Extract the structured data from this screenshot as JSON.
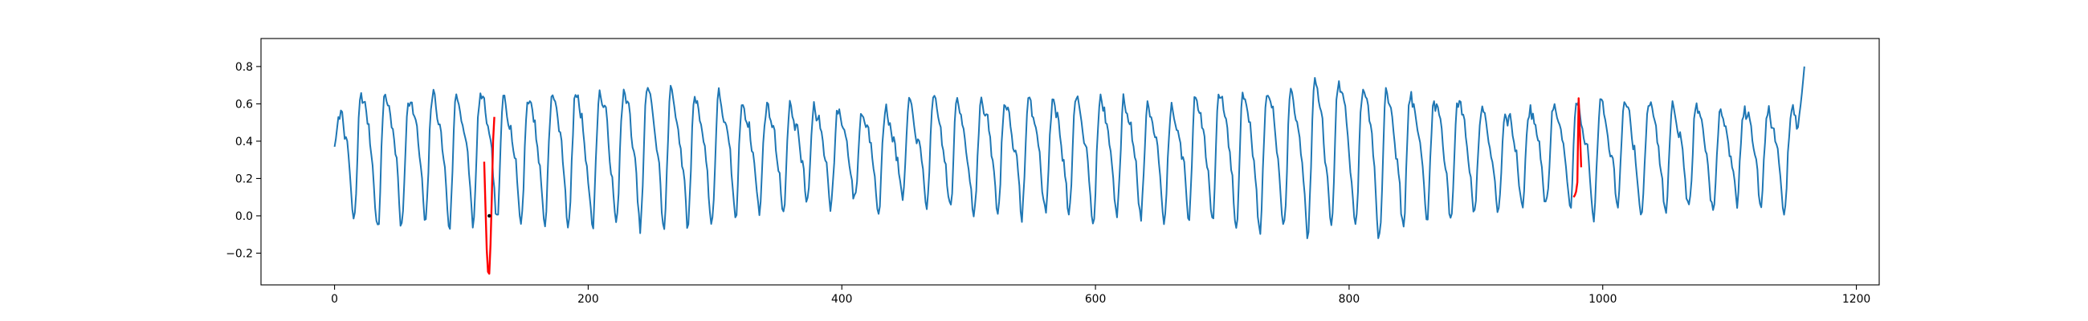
{
  "chart_data": {
    "type": "line",
    "title": "",
    "xlabel": "",
    "ylabel": "",
    "xlim": [
      -58,
      1218
    ],
    "ylim": [
      -0.37,
      0.95
    ],
    "xticks": [
      0,
      200,
      400,
      600,
      800,
      1000,
      1200
    ],
    "yticks": [
      -0.2,
      0.0,
      0.2,
      0.4,
      0.6,
      0.8
    ],
    "ytick_labels": [
      "−0.2",
      "0.0",
      "0.2",
      "0.4",
      "0.6",
      "0.8"
    ],
    "grid": false,
    "legend": "none",
    "series": [
      {
        "color": "#1f77b4",
        "generator": {
          "n_points": 1160,
          "period": 18.8,
          "base": 0.36,
          "amplitude": 0.34,
          "noise": 0.045,
          "seed": 7,
          "start_value": 0.37,
          "end_value": 0.8
        }
      },
      {
        "color": "#ff0000",
        "x": [
          118,
          119,
          120,
          121,
          122,
          123,
          124,
          125,
          126
        ],
        "y": [
          0.29,
          0.05,
          -0.18,
          -0.3,
          -0.31,
          -0.15,
          0.1,
          0.4,
          0.53
        ]
      },
      {
        "color": "#ff0000",
        "x": [
          977,
          978,
          979,
          980,
          981,
          982,
          983
        ],
        "y": [
          0.1,
          0.11,
          0.13,
          0.18,
          0.63,
          0.45,
          0.26
        ]
      }
    ],
    "annotations": [
      {
        "type": "point",
        "x": 122,
        "y": 0.0,
        "color": "#000000"
      }
    ]
  }
}
